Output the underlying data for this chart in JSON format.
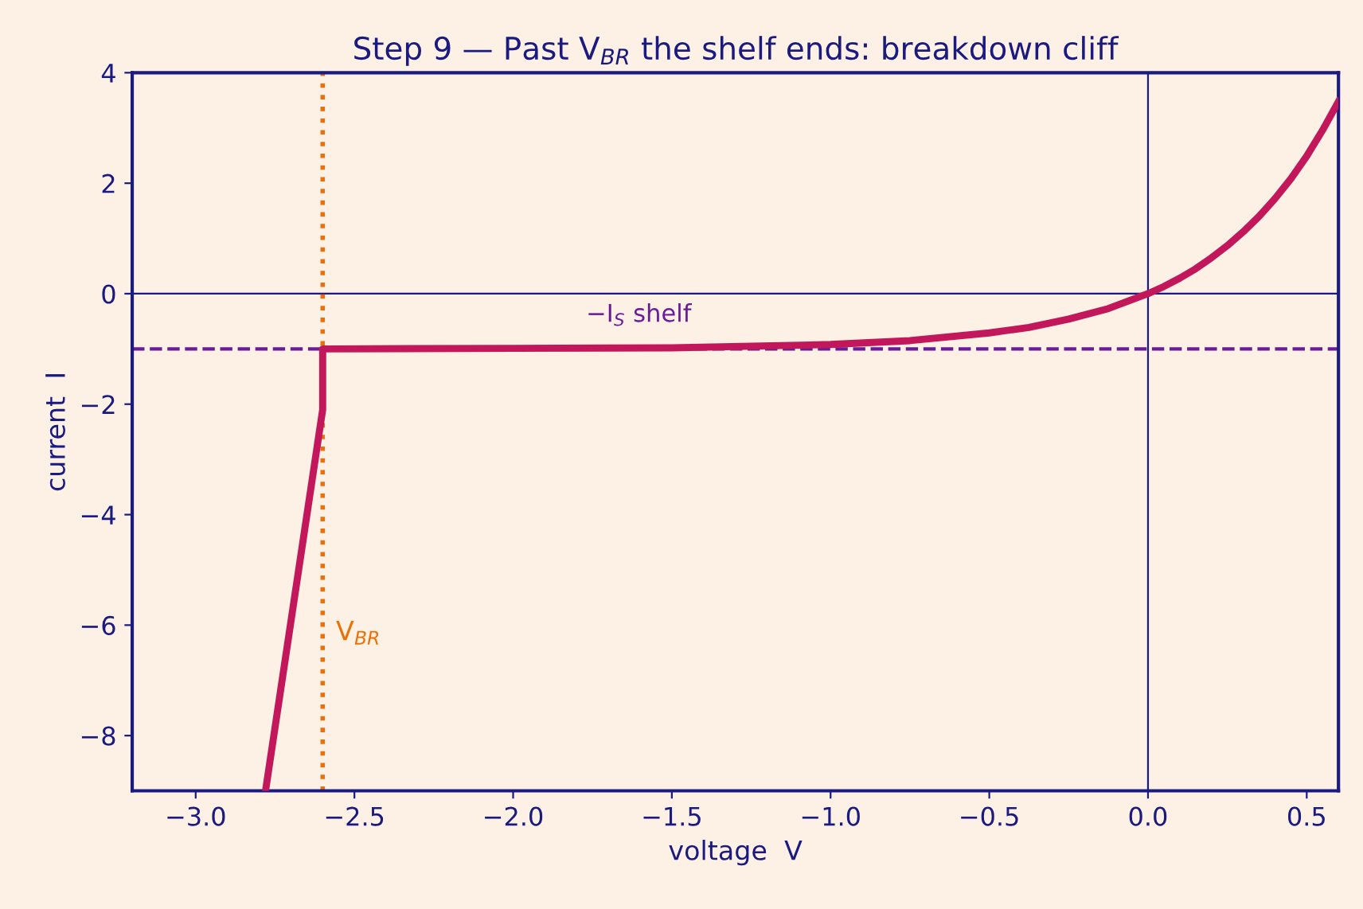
{
  "chart_data": {
    "type": "line",
    "title": "Step 9 — Past V$_{BR}$ the shelf ends: breakdown cliff",
    "xlabel": "voltage  V",
    "ylabel": "current  I",
    "x": [
      -2.78,
      -2.6,
      -2.6,
      -2.0,
      -1.5,
      -1.0,
      -0.75,
      -0.5,
      -0.375,
      -0.25,
      -0.125,
      0.0,
      0.05,
      0.1,
      0.15,
      0.2,
      0.25,
      0.3,
      0.35,
      0.4,
      0.45,
      0.5,
      0.55,
      0.6
    ],
    "series": [
      {
        "color": "#c2185b",
        "values": [
          -9.0,
          -2.1,
          -1.0,
          -0.99,
          -0.98,
          -0.92,
          -0.85,
          -0.71,
          -0.61,
          -0.46,
          -0.27,
          0.0,
          0.13,
          0.28,
          0.45,
          0.65,
          0.87,
          1.12,
          1.4,
          1.72,
          2.08,
          2.49,
          2.96,
          3.48
        ]
      }
    ],
    "xlim": [
      -3.2,
      0.6
    ],
    "ylim": [
      -9,
      4
    ],
    "xticks": [
      {
        "value": -3.0,
        "label": "−3.0"
      },
      {
        "value": -2.5,
        "label": "−2.5"
      },
      {
        "value": -2.0,
        "label": "−2.0"
      },
      {
        "value": -1.5,
        "label": "−1.5"
      },
      {
        "value": -1.0,
        "label": "−1.0"
      },
      {
        "value": -0.5,
        "label": "−0.5"
      },
      {
        "value": 0.0,
        "label": "0.0"
      },
      {
        "value": 0.5,
        "label": "0.5"
      }
    ],
    "yticks": [
      {
        "value": -8,
        "label": "−8"
      },
      {
        "value": -6,
        "label": "−6"
      },
      {
        "value": -4,
        "label": "−4"
      },
      {
        "value": -2,
        "label": "−2"
      },
      0,
      2,
      4
    ],
    "ref_lines": [
      {
        "axis": "y",
        "value": 0,
        "color": "#1a1a80",
        "line_style": "solid"
      },
      {
        "axis": "x",
        "value": 0,
        "color": "#1a1a80",
        "line_style": "solid"
      },
      {
        "axis": "y",
        "value": -1,
        "color": "#6a1b9a",
        "line_style": "dashed",
        "label": "−I$_{S}$ shelf"
      },
      {
        "axis": "x",
        "value": -2.6,
        "color": "#e8710a",
        "line_style": "dotted",
        "label": "V$_{BR}$"
      }
    ],
    "grid": false,
    "legend": false,
    "marker": "none",
    "line_style": "solid"
  }
}
